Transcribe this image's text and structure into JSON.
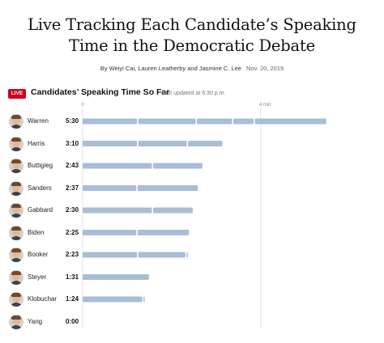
{
  "headline": {
    "line1": "Live Tracking Each Candidate’s Speaking",
    "line2": "Time in the Democratic Debate"
  },
  "byline": {
    "authors": "By Weiyi Cai, Lauren Leatherby and Jasmine C. Lee",
    "date": "Nov. 20, 2019"
  },
  "live_badge": "LIVE",
  "chart_header": {
    "title": "Candidates’ Speaking Time So Far",
    "updated": "Last updated at 6:30 p.m."
  },
  "colors": {
    "bar": "#a8bdd6",
    "live": "#d0021b",
    "gridline": "#d8d8d8"
  },
  "chart_data": {
    "type": "bar",
    "orientation": "horizontal",
    "axis": {
      "min": 0,
      "max": 345,
      "ticks": [
        {
          "value": 0,
          "label": "0"
        },
        {
          "value": 240,
          "label": "4 min."
        }
      ]
    },
    "candidates": [
      {
        "name": "Warren",
        "time": "5:30",
        "seconds": 330,
        "segments": [
          75,
          79,
          49,
          29,
          98
        ]
      },
      {
        "name": "Harris",
        "time": "3:10",
        "seconds": 190,
        "segments": [
          75,
          67,
          48
        ]
      },
      {
        "name": "Buttigieg",
        "time": "2:43",
        "seconds": 163,
        "segments": [
          95,
          68
        ]
      },
      {
        "name": "Sanders",
        "time": "2:37",
        "seconds": 157,
        "segments": [
          74,
          83
        ]
      },
      {
        "name": "Gabbard",
        "time": "2:30",
        "seconds": 150,
        "segments": [
          95,
          55
        ]
      },
      {
        "name": "Biden",
        "time": "2:25",
        "seconds": 145,
        "segments": [
          74,
          71
        ]
      },
      {
        "name": "Booker",
        "time": "2:23",
        "seconds": 143,
        "segments": [
          75,
          65,
          3
        ]
      },
      {
        "name": "Steyer",
        "time": "1:31",
        "seconds": 91,
        "segments": [
          91
        ]
      },
      {
        "name": "Klobuchar",
        "time": "1:24",
        "seconds": 84,
        "segments": [
          82,
          2
        ]
      },
      {
        "name": "Yang",
        "time": "0:00",
        "seconds": 0,
        "segments": []
      }
    ]
  }
}
